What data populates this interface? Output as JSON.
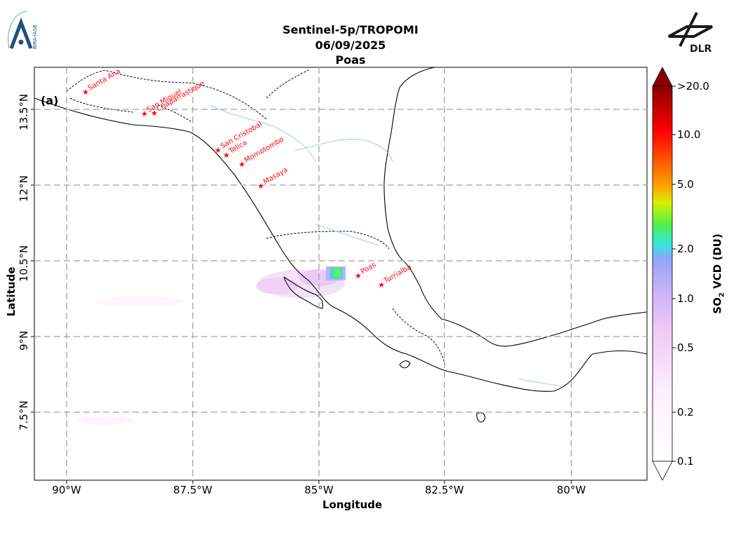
{
  "header": {
    "title_line1": "Sentinel-5p/TROPOMI",
    "title_line2": "06/09/2025",
    "title_line3": "Poas"
  },
  "logos": {
    "left_text": "BIRA-IASB",
    "right_text": "DLR"
  },
  "panel_label": "(a)",
  "axes": {
    "xlabel": "Longitude",
    "ylabel": "Latitude",
    "x_ticks": [
      "90°W",
      "87.5°W",
      "85°W",
      "82.5°W",
      "80°W"
    ],
    "y_ticks": [
      "13.5°N",
      "12°N",
      "10.5°N",
      "9°N",
      "7.5°N"
    ]
  },
  "colorbar": {
    "label_prefix": "SO",
    "label_sub": "2",
    "label_suffix": " VCD (DU)",
    "ticks": [
      ">20.0",
      "10.0",
      "5.0",
      "2.0",
      "1.0",
      "0.5",
      "0.2",
      "0.1"
    ],
    "scale": "log"
  },
  "volcanoes": [
    {
      "name": "Santa Ana"
    },
    {
      "name": "San Miguel"
    },
    {
      "name": "Chaparrastique"
    },
    {
      "name": "San Cristobal"
    },
    {
      "name": "Telica"
    },
    {
      "name": "Momotombo"
    },
    {
      "name": "Masaya"
    },
    {
      "name": "Poas"
    },
    {
      "name": "Turrialba"
    }
  ],
  "colors": {
    "volcano_marker": "#ff0000",
    "grid": "#b0b0b0",
    "coast": "#000000",
    "river": "#6fa8dc"
  }
}
